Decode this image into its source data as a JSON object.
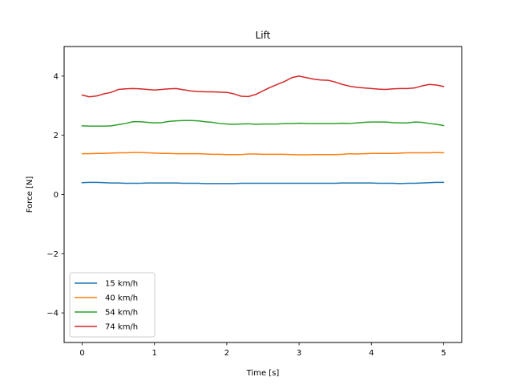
{
  "chart_data": {
    "type": "line",
    "title": "Lift",
    "xlabel": "Time [s]",
    "ylabel": "Force [N]",
    "xlim": [
      -0.25,
      5.25
    ],
    "ylim": [
      -5,
      5
    ],
    "xticks": [
      0,
      1,
      2,
      3,
      4,
      5
    ],
    "yticks": [
      -4,
      -2,
      0,
      2,
      4
    ],
    "ytick_labels": [
      "−4",
      "−2",
      "0",
      "2",
      "4"
    ],
    "grid": false,
    "legend_position": "lower-left",
    "x": [
      0.0,
      0.1,
      0.2,
      0.3,
      0.4,
      0.5,
      0.6,
      0.7,
      0.8,
      0.9,
      1.0,
      1.1,
      1.2,
      1.3,
      1.4,
      1.5,
      1.6,
      1.7,
      1.8,
      1.9,
      2.0,
      2.1,
      2.2,
      2.3,
      2.4,
      2.5,
      2.6,
      2.7,
      2.8,
      2.9,
      3.0,
      3.1,
      3.2,
      3.3,
      3.4,
      3.5,
      3.6,
      3.7,
      3.8,
      3.9,
      4.0,
      4.1,
      4.2,
      4.3,
      4.4,
      4.5,
      4.6,
      4.7,
      4.8,
      4.9,
      5.0
    ],
    "series": [
      {
        "name": "15 km/h",
        "color": "#1f77b4",
        "values": [
          0.4,
          0.41,
          0.41,
          0.4,
          0.39,
          0.39,
          0.38,
          0.38,
          0.38,
          0.39,
          0.39,
          0.39,
          0.39,
          0.39,
          0.38,
          0.38,
          0.38,
          0.37,
          0.37,
          0.37,
          0.37,
          0.37,
          0.38,
          0.38,
          0.38,
          0.38,
          0.38,
          0.38,
          0.38,
          0.38,
          0.38,
          0.38,
          0.38,
          0.38,
          0.38,
          0.38,
          0.39,
          0.39,
          0.39,
          0.39,
          0.39,
          0.38,
          0.38,
          0.38,
          0.37,
          0.38,
          0.38,
          0.39,
          0.4,
          0.41,
          0.41
        ]
      },
      {
        "name": "40 km/h",
        "color": "#ff7f0e",
        "values": [
          1.38,
          1.38,
          1.39,
          1.39,
          1.4,
          1.41,
          1.41,
          1.42,
          1.42,
          1.41,
          1.4,
          1.39,
          1.39,
          1.38,
          1.38,
          1.38,
          1.38,
          1.37,
          1.36,
          1.36,
          1.35,
          1.35,
          1.35,
          1.37,
          1.37,
          1.36,
          1.36,
          1.36,
          1.36,
          1.35,
          1.34,
          1.34,
          1.35,
          1.35,
          1.35,
          1.35,
          1.36,
          1.38,
          1.37,
          1.38,
          1.39,
          1.39,
          1.39,
          1.39,
          1.4,
          1.41,
          1.41,
          1.41,
          1.41,
          1.42,
          1.41
        ]
      },
      {
        "name": "54 km/h",
        "color": "#2ca02c",
        "values": [
          2.32,
          2.31,
          2.31,
          2.31,
          2.32,
          2.36,
          2.4,
          2.46,
          2.46,
          2.44,
          2.42,
          2.43,
          2.47,
          2.49,
          2.5,
          2.5,
          2.49,
          2.46,
          2.44,
          2.4,
          2.38,
          2.37,
          2.38,
          2.39,
          2.37,
          2.38,
          2.38,
          2.38,
          2.4,
          2.4,
          2.41,
          2.4,
          2.4,
          2.4,
          2.4,
          2.4,
          2.41,
          2.4,
          2.42,
          2.44,
          2.45,
          2.45,
          2.45,
          2.43,
          2.42,
          2.42,
          2.45,
          2.44,
          2.4,
          2.37,
          2.33
        ]
      },
      {
        "name": "74 km/h",
        "color": "#d62728",
        "values": [
          3.36,
          3.3,
          3.33,
          3.4,
          3.45,
          3.55,
          3.57,
          3.58,
          3.57,
          3.55,
          3.53,
          3.55,
          3.57,
          3.58,
          3.54,
          3.5,
          3.48,
          3.47,
          3.47,
          3.46,
          3.45,
          3.4,
          3.32,
          3.31,
          3.38,
          3.5,
          3.62,
          3.72,
          3.82,
          3.95,
          4.0,
          3.95,
          3.9,
          3.87,
          3.86,
          3.8,
          3.72,
          3.66,
          3.62,
          3.6,
          3.58,
          3.56,
          3.55,
          3.57,
          3.58,
          3.58,
          3.6,
          3.67,
          3.72,
          3.7,
          3.65
        ]
      }
    ]
  }
}
